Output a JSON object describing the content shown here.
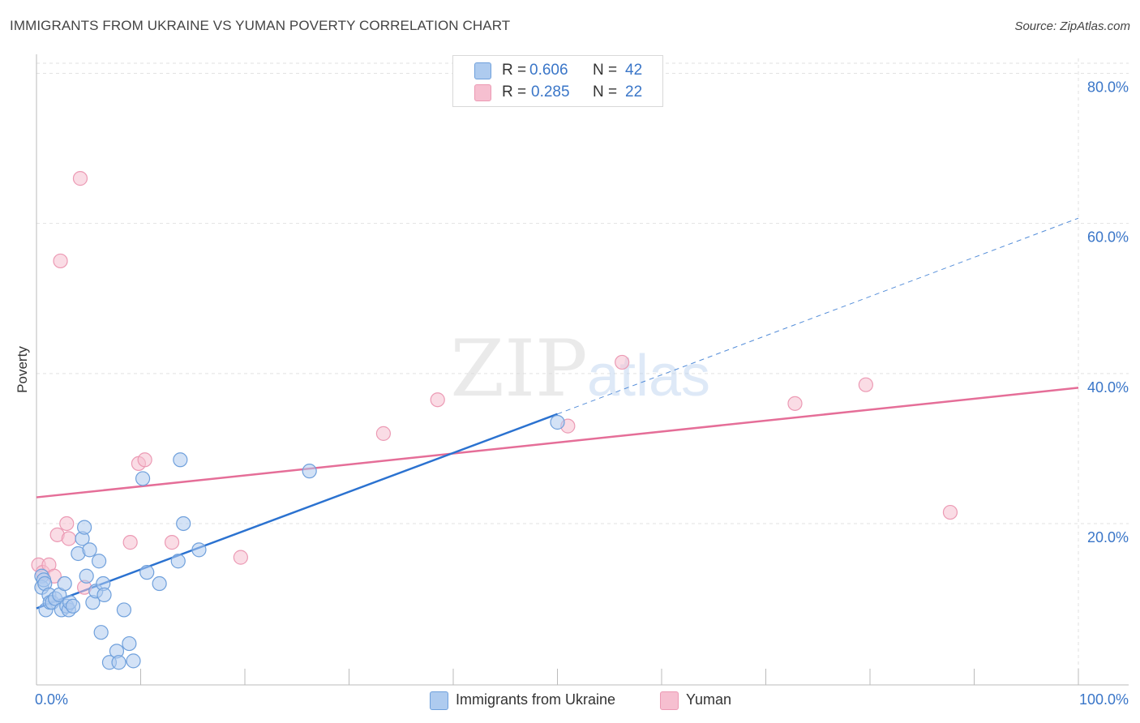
{
  "title": "IMMIGRANTS FROM UKRAINE VS YUMAN POVERTY CORRELATION CHART",
  "source": "Source: ZipAtlas.com",
  "watermark": {
    "zip": "ZIP",
    "atlas": "atlas"
  },
  "legend": {
    "r_label": "R =",
    "n_label": "N =",
    "series": [
      {
        "name": "Immigrants from Ukraine",
        "r": "0.606",
        "n": "42"
      },
      {
        "name": "Yuman",
        "r": "0.285",
        "n": "22"
      }
    ]
  },
  "colors": {
    "blue_fill": "#aecbef",
    "blue_stroke": "#6fa0dc",
    "blue_line": "#2b72d0",
    "pink_fill": "#f6bfd0",
    "pink_stroke": "#ec9ab4",
    "pink_line": "#e56e98",
    "tick_label": "#3a76c8",
    "grid": "#e2e2e2"
  },
  "chart_data": {
    "type": "scatter",
    "title": "IMMIGRANTS FROM UKRAINE VS YUMAN POVERTY CORRELATION CHART",
    "xlabel": "",
    "ylabel": "Poverty",
    "xlim": [
      0,
      100
    ],
    "ylim": [
      -1.5,
      82
    ],
    "x_tick_labels": [
      {
        "value": 0,
        "label": "0.0%"
      },
      {
        "value": 100,
        "label": "100.0%"
      }
    ],
    "y_tick_labels": [
      {
        "value": 20,
        "label": "20.0%"
      },
      {
        "value": 40,
        "label": "40.0%"
      },
      {
        "value": 60,
        "label": "60.0%"
      },
      {
        "value": 80,
        "label": "80.0%"
      }
    ],
    "grid": true,
    "legend_position": "top-center",
    "series": [
      {
        "name": "Immigrants from Ukraine",
        "color": "blue",
        "points": [
          [
            0.5,
            13
          ],
          [
            0.5,
            11.5
          ],
          [
            0.7,
            12.5
          ],
          [
            0.8,
            12
          ],
          [
            0.9,
            8.5
          ],
          [
            1.2,
            10.5
          ],
          [
            1.3,
            9.5
          ],
          [
            1.5,
            9.5
          ],
          [
            1.8,
            10
          ],
          [
            2.2,
            10.5
          ],
          [
            2.4,
            8.5
          ],
          [
            2.7,
            12
          ],
          [
            2.9,
            9
          ],
          [
            3.1,
            8.5
          ],
          [
            3.2,
            9.5
          ],
          [
            3.5,
            9
          ],
          [
            4.0,
            16
          ],
          [
            4.4,
            18
          ],
          [
            4.6,
            19.5
          ],
          [
            4.8,
            13
          ],
          [
            5.1,
            16.5
          ],
          [
            5.4,
            9.5
          ],
          [
            5.7,
            11
          ],
          [
            6.0,
            15
          ],
          [
            6.2,
            5.5
          ],
          [
            6.4,
            12
          ],
          [
            6.5,
            10.5
          ],
          [
            7.0,
            1.5
          ],
          [
            7.7,
            3
          ],
          [
            7.9,
            1.5
          ],
          [
            8.4,
            8.5
          ],
          [
            8.9,
            4
          ],
          [
            9.3,
            1.7
          ],
          [
            10.2,
            26
          ],
          [
            10.6,
            13.5
          ],
          [
            11.8,
            12
          ],
          [
            13.6,
            15
          ],
          [
            13.8,
            28.5
          ],
          [
            14.1,
            20
          ],
          [
            15.6,
            16.5
          ],
          [
            26.2,
            27
          ],
          [
            50.0,
            33.5
          ]
        ],
        "trend": {
          "x": [
            0,
            50
          ],
          "y": [
            8.7,
            34.6
          ]
        },
        "trend_extension": {
          "x": [
            50,
            100
          ],
          "y": [
            34.6,
            60.7
          ]
        }
      },
      {
        "name": "Yuman",
        "color": "pink",
        "points": [
          [
            0.2,
            14.5
          ],
          [
            0.6,
            13.5
          ],
          [
            1.2,
            14.5
          ],
          [
            1.7,
            13
          ],
          [
            2.0,
            18.5
          ],
          [
            2.3,
            55
          ],
          [
            2.9,
            20
          ],
          [
            3.1,
            18
          ],
          [
            4.2,
            66
          ],
          [
            4.6,
            11.5
          ],
          [
            9.0,
            17.5
          ],
          [
            9.8,
            28
          ],
          [
            10.4,
            28.5
          ],
          [
            13.0,
            17.5
          ],
          [
            19.6,
            15.5
          ],
          [
            33.3,
            32
          ],
          [
            38.5,
            36.5
          ],
          [
            51.0,
            33
          ],
          [
            56.2,
            41.5
          ],
          [
            72.8,
            36
          ],
          [
            79.6,
            38.5
          ],
          [
            87.7,
            21.5
          ]
        ],
        "trend": {
          "x": [
            0,
            100
          ],
          "y": [
            23.5,
            38.1
          ]
        }
      }
    ]
  }
}
